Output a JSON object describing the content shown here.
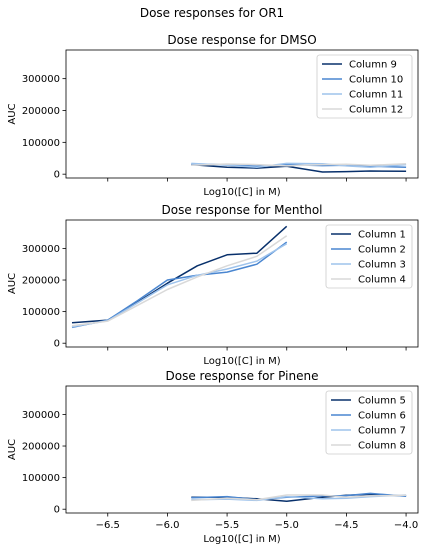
{
  "suptitle": "Dose responses for OR1",
  "colors": [
    "#08306b",
    "#4a86d0",
    "#9ec3ec",
    "#d9d9d9"
  ],
  "chart_data": [
    {
      "type": "line",
      "title": "Dose response for DMSO",
      "xlabel": "Log10([C] in M)",
      "ylabel": "AUC",
      "xlim": [
        -6.85,
        -3.9
      ],
      "ylim": [
        -12000,
        390000
      ],
      "yticks": [
        0,
        100000,
        200000,
        300000
      ],
      "show_xticklabels": false,
      "legend": "top-right",
      "series": [
        {
          "name": "Column 9",
          "x": [
            -5.8,
            -5.5,
            -5.25,
            -5.0,
            -4.7,
            -4.5,
            -4.3,
            -4.0
          ],
          "y": [
            30000,
            22000,
            19000,
            25000,
            7000,
            8000,
            10000,
            9000
          ]
        },
        {
          "name": "Column 10",
          "x": [
            -5.8,
            -5.5,
            -5.25,
            -5.0,
            -4.7,
            -4.5,
            -4.3,
            -4.0
          ],
          "y": [
            32000,
            30000,
            25000,
            30000,
            27000,
            28000,
            25000,
            22000
          ]
        },
        {
          "name": "Column 11",
          "x": [
            -5.8,
            -5.5,
            -5.25,
            -5.0,
            -4.7,
            -4.5,
            -4.3,
            -4.0
          ],
          "y": [
            34000,
            28000,
            22000,
            34000,
            33000,
            26000,
            22000,
            30000
          ]
        },
        {
          "name": "Column 12",
          "x": [
            -5.8,
            -5.5,
            -5.25,
            -5.0,
            -4.7,
            -4.5,
            -4.3,
            -4.0
          ],
          "y": [
            28000,
            32000,
            30000,
            26000,
            30000,
            31000,
            28000,
            33000
          ]
        }
      ]
    },
    {
      "type": "line",
      "title": "Dose response for Menthol",
      "xlabel": "Log10([C] in M)",
      "ylabel": "AUC",
      "xlim": [
        -6.85,
        -3.9
      ],
      "ylim": [
        -12000,
        390000
      ],
      "yticks": [
        0,
        100000,
        200000,
        300000
      ],
      "show_xticklabels": false,
      "legend": "top-right",
      "series": [
        {
          "name": "Column 1",
          "x": [
            -6.8,
            -6.5,
            -6.25,
            -6.0,
            -5.75,
            -5.5,
            -5.25,
            -5.0
          ],
          "y": [
            65000,
            73000,
            130000,
            190000,
            245000,
            280000,
            285000,
            370000
          ]
        },
        {
          "name": "Column 2",
          "x": [
            -6.8,
            -6.5,
            -6.25,
            -6.0,
            -5.75,
            -5.5,
            -5.25,
            -5.0
          ],
          "y": [
            50000,
            73000,
            135000,
            200000,
            215000,
            225000,
            250000,
            320000
          ]
        },
        {
          "name": "Column 3",
          "x": [
            -6.8,
            -6.5,
            -6.25,
            -6.0,
            -5.75,
            -5.5,
            -5.25,
            -5.0
          ],
          "y": [
            52000,
            71000,
            128000,
            185000,
            215000,
            235000,
            260000,
            315000
          ]
        },
        {
          "name": "Column 4",
          "x": [
            -6.8,
            -6.5,
            -6.25,
            -6.0,
            -5.75,
            -5.5,
            -5.25,
            -5.0
          ],
          "y": [
            55000,
            70000,
            120000,
            170000,
            210000,
            245000,
            275000,
            340000
          ]
        }
      ]
    },
    {
      "type": "line",
      "title": "Dose response for Pinene",
      "xlabel": "Log10([C] in M)",
      "ylabel": "AUC",
      "xlim": [
        -6.85,
        -3.9
      ],
      "ylim": [
        -12000,
        390000
      ],
      "yticks": [
        0,
        100000,
        200000,
        300000
      ],
      "xticks": [
        -6.5,
        -6.0,
        -5.5,
        -5.0,
        -4.5,
        -4.0
      ],
      "show_xticklabels": true,
      "legend": "top-right",
      "series": [
        {
          "name": "Column 5",
          "x": [
            -5.8,
            -5.5,
            -5.25,
            -5.0,
            -4.7,
            -4.5,
            -4.3,
            -4.0
          ],
          "y": [
            38000,
            38000,
            33000,
            25000,
            38000,
            44000,
            47000,
            42000
          ]
        },
        {
          "name": "Column 6",
          "x": [
            -5.8,
            -5.5,
            -5.25,
            -5.0,
            -4.7,
            -4.5,
            -4.3,
            -4.0
          ],
          "y": [
            36000,
            40000,
            30000,
            38000,
            42000,
            43000,
            50000,
            41000
          ]
        },
        {
          "name": "Column 7",
          "x": [
            -5.8,
            -5.5,
            -5.25,
            -5.0,
            -4.7,
            -4.5,
            -4.3,
            -4.0
          ],
          "y": [
            30000,
            32000,
            28000,
            40000,
            33000,
            35000,
            40000,
            45000
          ]
        },
        {
          "name": "Column 8",
          "x": [
            -5.8,
            -5.5,
            -5.25,
            -5.0,
            -4.7,
            -4.5,
            -4.3,
            -4.0
          ],
          "y": [
            28000,
            35000,
            30000,
            45000,
            45000,
            38000,
            42000,
            44000
          ]
        }
      ]
    }
  ]
}
